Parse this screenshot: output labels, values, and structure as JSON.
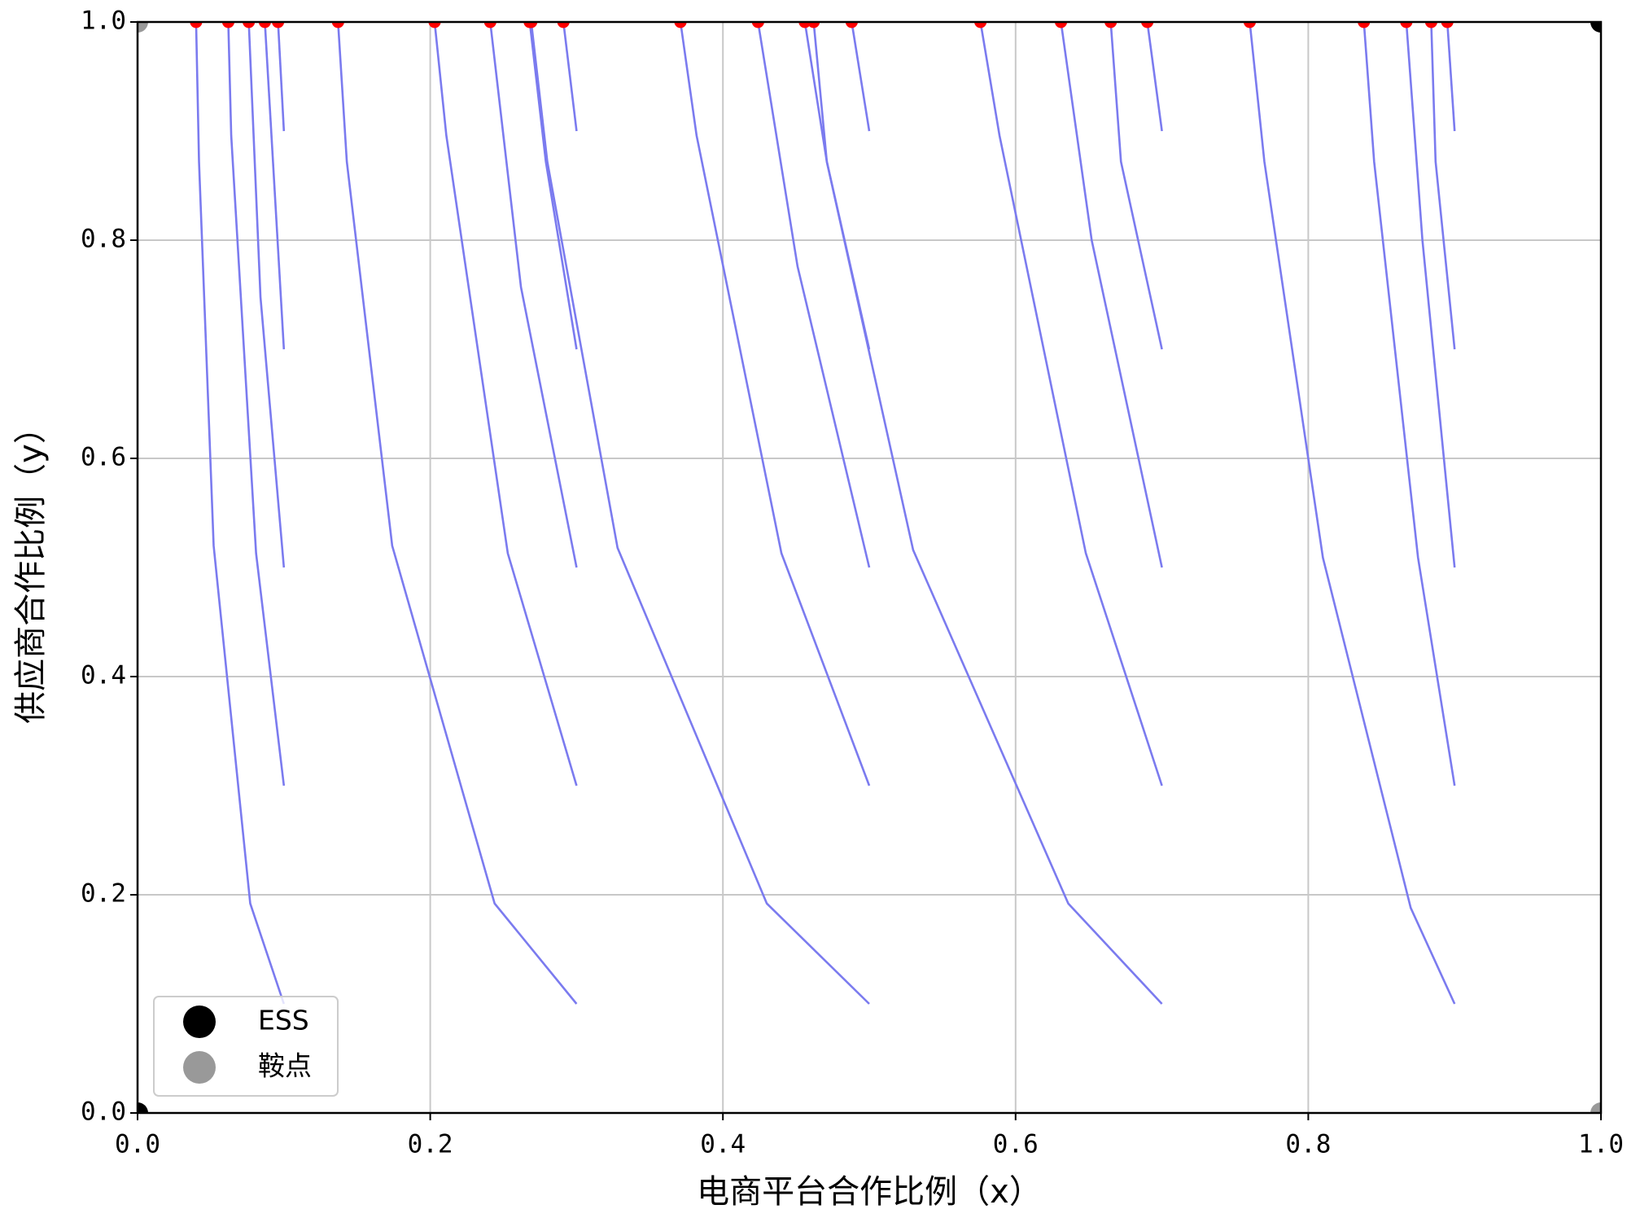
{
  "chart_data": {
    "type": "line",
    "xlabel": "电商平台合作比例（x）",
    "ylabel": "供应商合作比例（y）",
    "xlim": [
      0,
      1
    ],
    "ylim": [
      0,
      1
    ],
    "xticks": [
      {
        "value": 0,
        "label": "0.0"
      },
      0.2,
      0.4,
      0.6,
      0.8,
      {
        "value": 1,
        "label": "1.0"
      }
    ],
    "yticks": [
      {
        "value": 0,
        "label": "0.0"
      },
      0.2,
      0.4,
      0.6,
      0.8,
      {
        "value": 1,
        "label": "1.0"
      }
    ],
    "grid": true,
    "line_color": "#7b7bef",
    "end_color": "#ff0000",
    "legend": "lower left",
    "trajectories": [
      {
        "x": [
          0.1,
          0.077,
          0.052,
          0.042,
          0.04
        ],
        "y": [
          0.1,
          0.192,
          0.52,
          0.872,
          1.0
        ]
      },
      {
        "x": [
          0.1,
          0.081,
          0.064,
          0.062
        ],
        "y": [
          0.3,
          0.513,
          0.896,
          1.0
        ]
      },
      {
        "x": [
          0.1,
          0.084,
          0.076
        ],
        "y": [
          0.5,
          0.748,
          1.0
        ]
      },
      {
        "x": [
          0.1,
          0.087
        ],
        "y": [
          0.7,
          1.0
        ]
      },
      {
        "x": [
          0.1,
          0.096
        ],
        "y": [
          0.9,
          1.0
        ]
      },
      {
        "x": [
          0.3,
          0.244,
          0.174,
          0.143,
          0.137
        ],
        "y": [
          0.1,
          0.192,
          0.52,
          0.872,
          1.0
        ]
      },
      {
        "x": [
          0.3,
          0.253,
          0.211,
          0.203
        ],
        "y": [
          0.3,
          0.513,
          0.896,
          1.0
        ]
      },
      {
        "x": [
          0.3,
          0.262,
          0.241
        ],
        "y": [
          0.5,
          0.757,
          1.0
        ]
      },
      {
        "x": [
          0.3,
          0.279,
          0.268
        ],
        "y": [
          0.7,
          0.872,
          1.0
        ]
      },
      {
        "x": [
          0.3,
          0.291
        ],
        "y": [
          0.9,
          1.0
        ]
      },
      {
        "x": [
          0.5,
          0.43,
          0.328,
          0.28,
          0.269
        ],
        "y": [
          0.1,
          0.192,
          0.518,
          0.872,
          1.0
        ]
      },
      {
        "x": [
          0.5,
          0.44,
          0.382,
          0.371
        ],
        "y": [
          0.3,
          0.513,
          0.896,
          1.0
        ]
      },
      {
        "x": [
          0.5,
          0.451,
          0.424
        ],
        "y": [
          0.5,
          0.776,
          1.0
        ]
      },
      {
        "x": [
          0.5,
          0.471,
          0.462
        ],
        "y": [
          0.7,
          0.872,
          1.0
        ]
      },
      {
        "x": [
          0.5,
          0.488
        ],
        "y": [
          0.9,
          1.0
        ]
      },
      {
        "x": [
          0.7,
          0.636,
          0.53,
          0.471,
          0.456
        ],
        "y": [
          0.1,
          0.192,
          0.516,
          0.872,
          1.0
        ]
      },
      {
        "x": [
          0.7,
          0.648,
          0.589,
          0.576
        ],
        "y": [
          0.3,
          0.513,
          0.896,
          1.0
        ]
      },
      {
        "x": [
          0.7,
          0.652,
          0.631
        ],
        "y": [
          0.5,
          0.8,
          1.0
        ]
      },
      {
        "x": [
          0.7,
          0.672,
          0.665
        ],
        "y": [
          0.7,
          0.872,
          1.0
        ]
      },
      {
        "x": [
          0.7,
          0.69
        ],
        "y": [
          0.9,
          1.0
        ]
      },
      {
        "x": [
          0.9,
          0.87,
          0.81,
          0.77,
          0.76
        ],
        "y": [
          0.1,
          0.188,
          0.509,
          0.872,
          1.0
        ]
      },
      {
        "x": [
          0.9,
          0.875,
          0.845,
          0.838
        ],
        "y": [
          0.3,
          0.509,
          0.872,
          1.0
        ]
      },
      {
        "x": [
          0.9,
          0.878,
          0.867
        ],
        "y": [
          0.5,
          0.8,
          1.0
        ]
      },
      {
        "x": [
          0.9,
          0.887,
          0.884
        ],
        "y": [
          0.7,
          0.872,
          1.0
        ]
      },
      {
        "x": [
          0.9,
          0.895
        ],
        "y": [
          0.9,
          1.0
        ]
      }
    ],
    "points": [
      {
        "name": "ESS",
        "color": "#000000",
        "x": [
          0,
          1
        ],
        "y": [
          0,
          1
        ]
      },
      {
        "name": "鞍点",
        "color": "#999999",
        "x": [
          0,
          1
        ],
        "y": [
          1,
          0
        ]
      }
    ]
  }
}
